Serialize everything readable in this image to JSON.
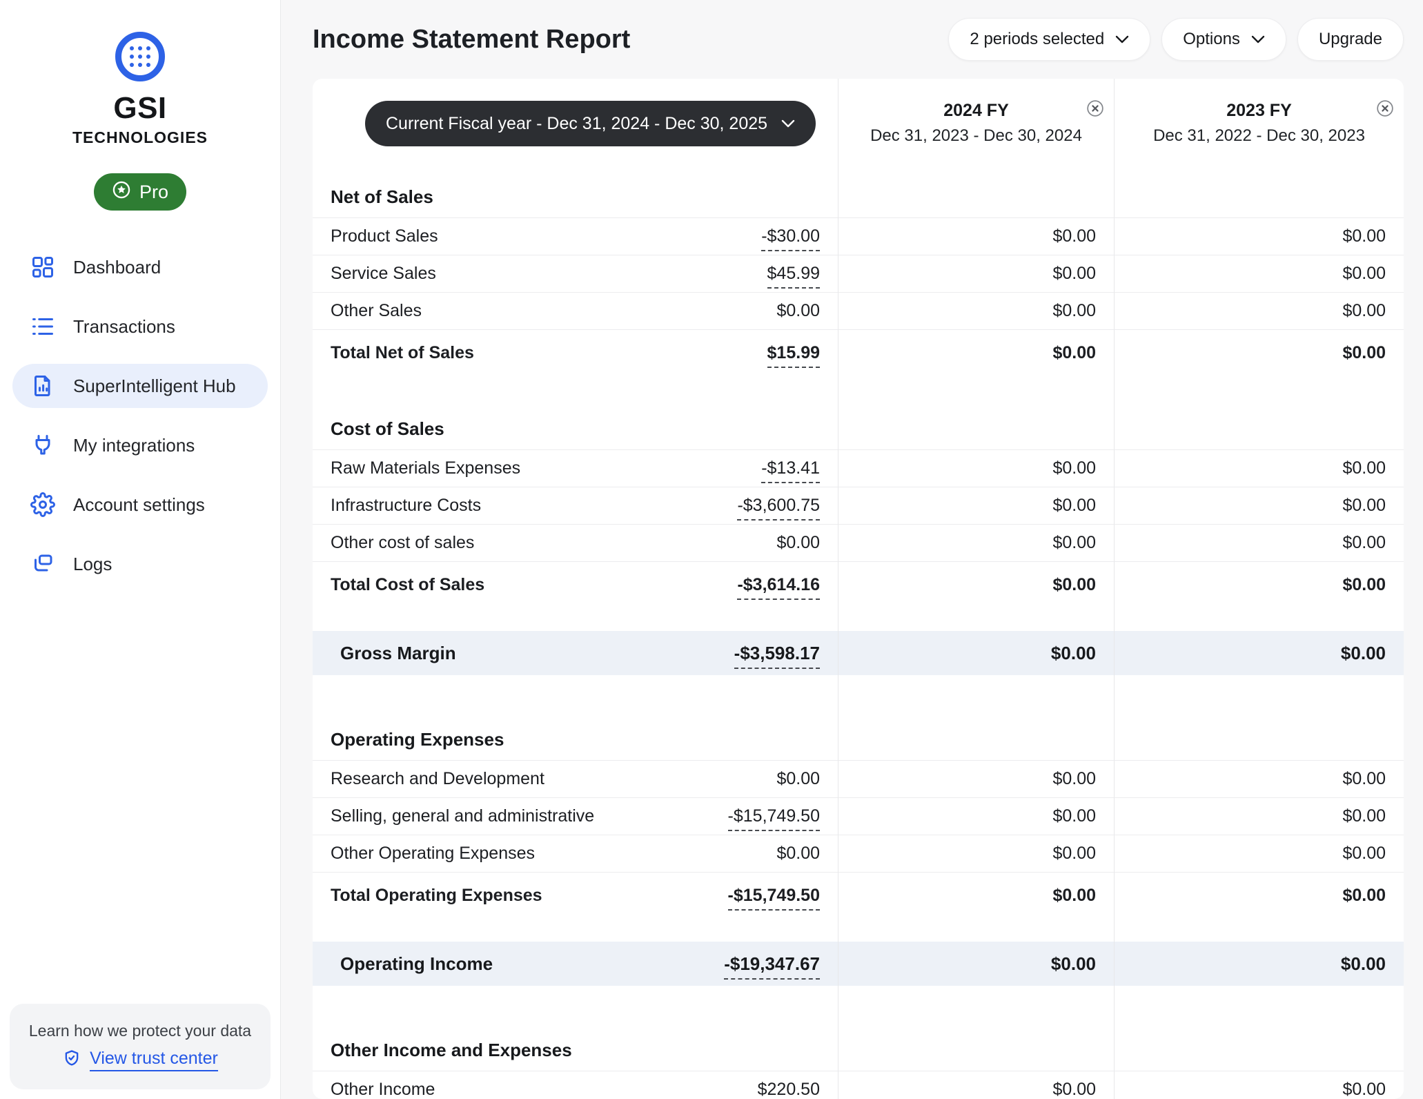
{
  "sidebar": {
    "brand": {
      "name": "GSI",
      "subtitle": "TECHNOLOGIES",
      "logo_icon": "gsi-logo-icon"
    },
    "plan_badge": {
      "label": "Pro",
      "icon": "star-circle-icon",
      "color": "#2e7d33"
    },
    "nav": [
      {
        "id": "dashboard",
        "label": "Dashboard",
        "icon": "dashboard-icon",
        "active": false
      },
      {
        "id": "transactions",
        "label": "Transactions",
        "icon": "transactions-icon",
        "active": false
      },
      {
        "id": "superintelligent-hub",
        "label": "SuperIntelligent Hub",
        "icon": "report-document-icon",
        "active": true
      },
      {
        "id": "my-integrations",
        "label": "My integrations",
        "icon": "plug-icon",
        "active": false
      },
      {
        "id": "account-settings",
        "label": "Account settings",
        "icon": "gear-icon",
        "active": false
      },
      {
        "id": "logs",
        "label": "Logs",
        "icon": "logs-icon",
        "active": false
      }
    ],
    "trust": {
      "text": "Learn how we protect your data",
      "link_label": "View trust center",
      "icon": "shield-check-icon"
    }
  },
  "header": {
    "title": "Income Statement Report",
    "buttons": {
      "periods": {
        "label": "2 periods selected",
        "icon": "chevron-down-icon"
      },
      "options": {
        "label": "Options",
        "icon": "chevron-down-icon"
      },
      "upgrade": {
        "label": "Upgrade"
      }
    }
  },
  "report": {
    "period_selector": {
      "label": "Current Fiscal year - Dec 31, 2024 - Dec 30, 2025",
      "icon": "chevron-down-icon"
    },
    "comparison_columns": [
      {
        "title": "2024 FY",
        "subtitle": "Dec 31, 2023 - Dec 30, 2024",
        "close_icon": "close-circle-icon"
      },
      {
        "title": "2023 FY",
        "subtitle": "Dec 31, 2022 - Dec 30, 2023",
        "close_icon": "close-circle-icon"
      }
    ],
    "table": [
      {
        "type": "section",
        "title": "Net of Sales",
        "rows": [
          {
            "label": "Product Sales",
            "values": [
              "-$30.00",
              "$0.00",
              "$0.00"
            ],
            "dashed": true,
            "total": false
          },
          {
            "label": "Service Sales",
            "values": [
              "$45.99",
              "$0.00",
              "$0.00"
            ],
            "dashed": true,
            "total": false
          },
          {
            "label": "Other Sales",
            "values": [
              "$0.00",
              "$0.00",
              "$0.00"
            ],
            "dashed": false,
            "total": false
          },
          {
            "label": "Total Net of Sales",
            "values": [
              "$15.99",
              "$0.00",
              "$0.00"
            ],
            "dashed": true,
            "total": true
          }
        ]
      },
      {
        "type": "section",
        "title": "Cost of Sales",
        "rows": [
          {
            "label": "Raw Materials Expenses",
            "values": [
              "-$13.41",
              "$0.00",
              "$0.00"
            ],
            "dashed": true,
            "total": false
          },
          {
            "label": "Infrastructure Costs",
            "values": [
              "-$3,600.75",
              "$0.00",
              "$0.00"
            ],
            "dashed": true,
            "total": false
          },
          {
            "label": "Other cost of sales",
            "values": [
              "$0.00",
              "$0.00",
              "$0.00"
            ],
            "dashed": false,
            "total": false
          },
          {
            "label": "Total Cost of Sales",
            "values": [
              "-$3,614.16",
              "$0.00",
              "$0.00"
            ],
            "dashed": true,
            "total": true
          }
        ]
      },
      {
        "type": "highlight",
        "label": "Gross Margin",
        "values": [
          "-$3,598.17",
          "$0.00",
          "$0.00"
        ],
        "dashed": true
      },
      {
        "type": "section",
        "title": "Operating Expenses",
        "rows": [
          {
            "label": "Research and Development",
            "values": [
              "$0.00",
              "$0.00",
              "$0.00"
            ],
            "dashed": false,
            "total": false
          },
          {
            "label": "Selling, general and administrative",
            "values": [
              "-$15,749.50",
              "$0.00",
              "$0.00"
            ],
            "dashed": true,
            "total": false
          },
          {
            "label": "Other Operating Expenses",
            "values": [
              "$0.00",
              "$0.00",
              "$0.00"
            ],
            "dashed": false,
            "total": false
          },
          {
            "label": "Total Operating Expenses",
            "values": [
              "-$15,749.50",
              "$0.00",
              "$0.00"
            ],
            "dashed": true,
            "total": true
          }
        ]
      },
      {
        "type": "highlight",
        "label": "Operating Income",
        "values": [
          "-$19,347.67",
          "$0.00",
          "$0.00"
        ],
        "dashed": true
      },
      {
        "type": "section",
        "title": "Other Income and Expenses",
        "rows": [
          {
            "label": "Other Income",
            "values": [
              "$220.50",
              "$0.00",
              "$0.00"
            ],
            "dashed": true,
            "total": false
          }
        ]
      }
    ]
  },
  "colors": {
    "accent_blue": "#2d62e6",
    "badge_green": "#2e7d33",
    "selector_dark": "#2c2e32",
    "highlight_row": "#edf1f7"
  }
}
